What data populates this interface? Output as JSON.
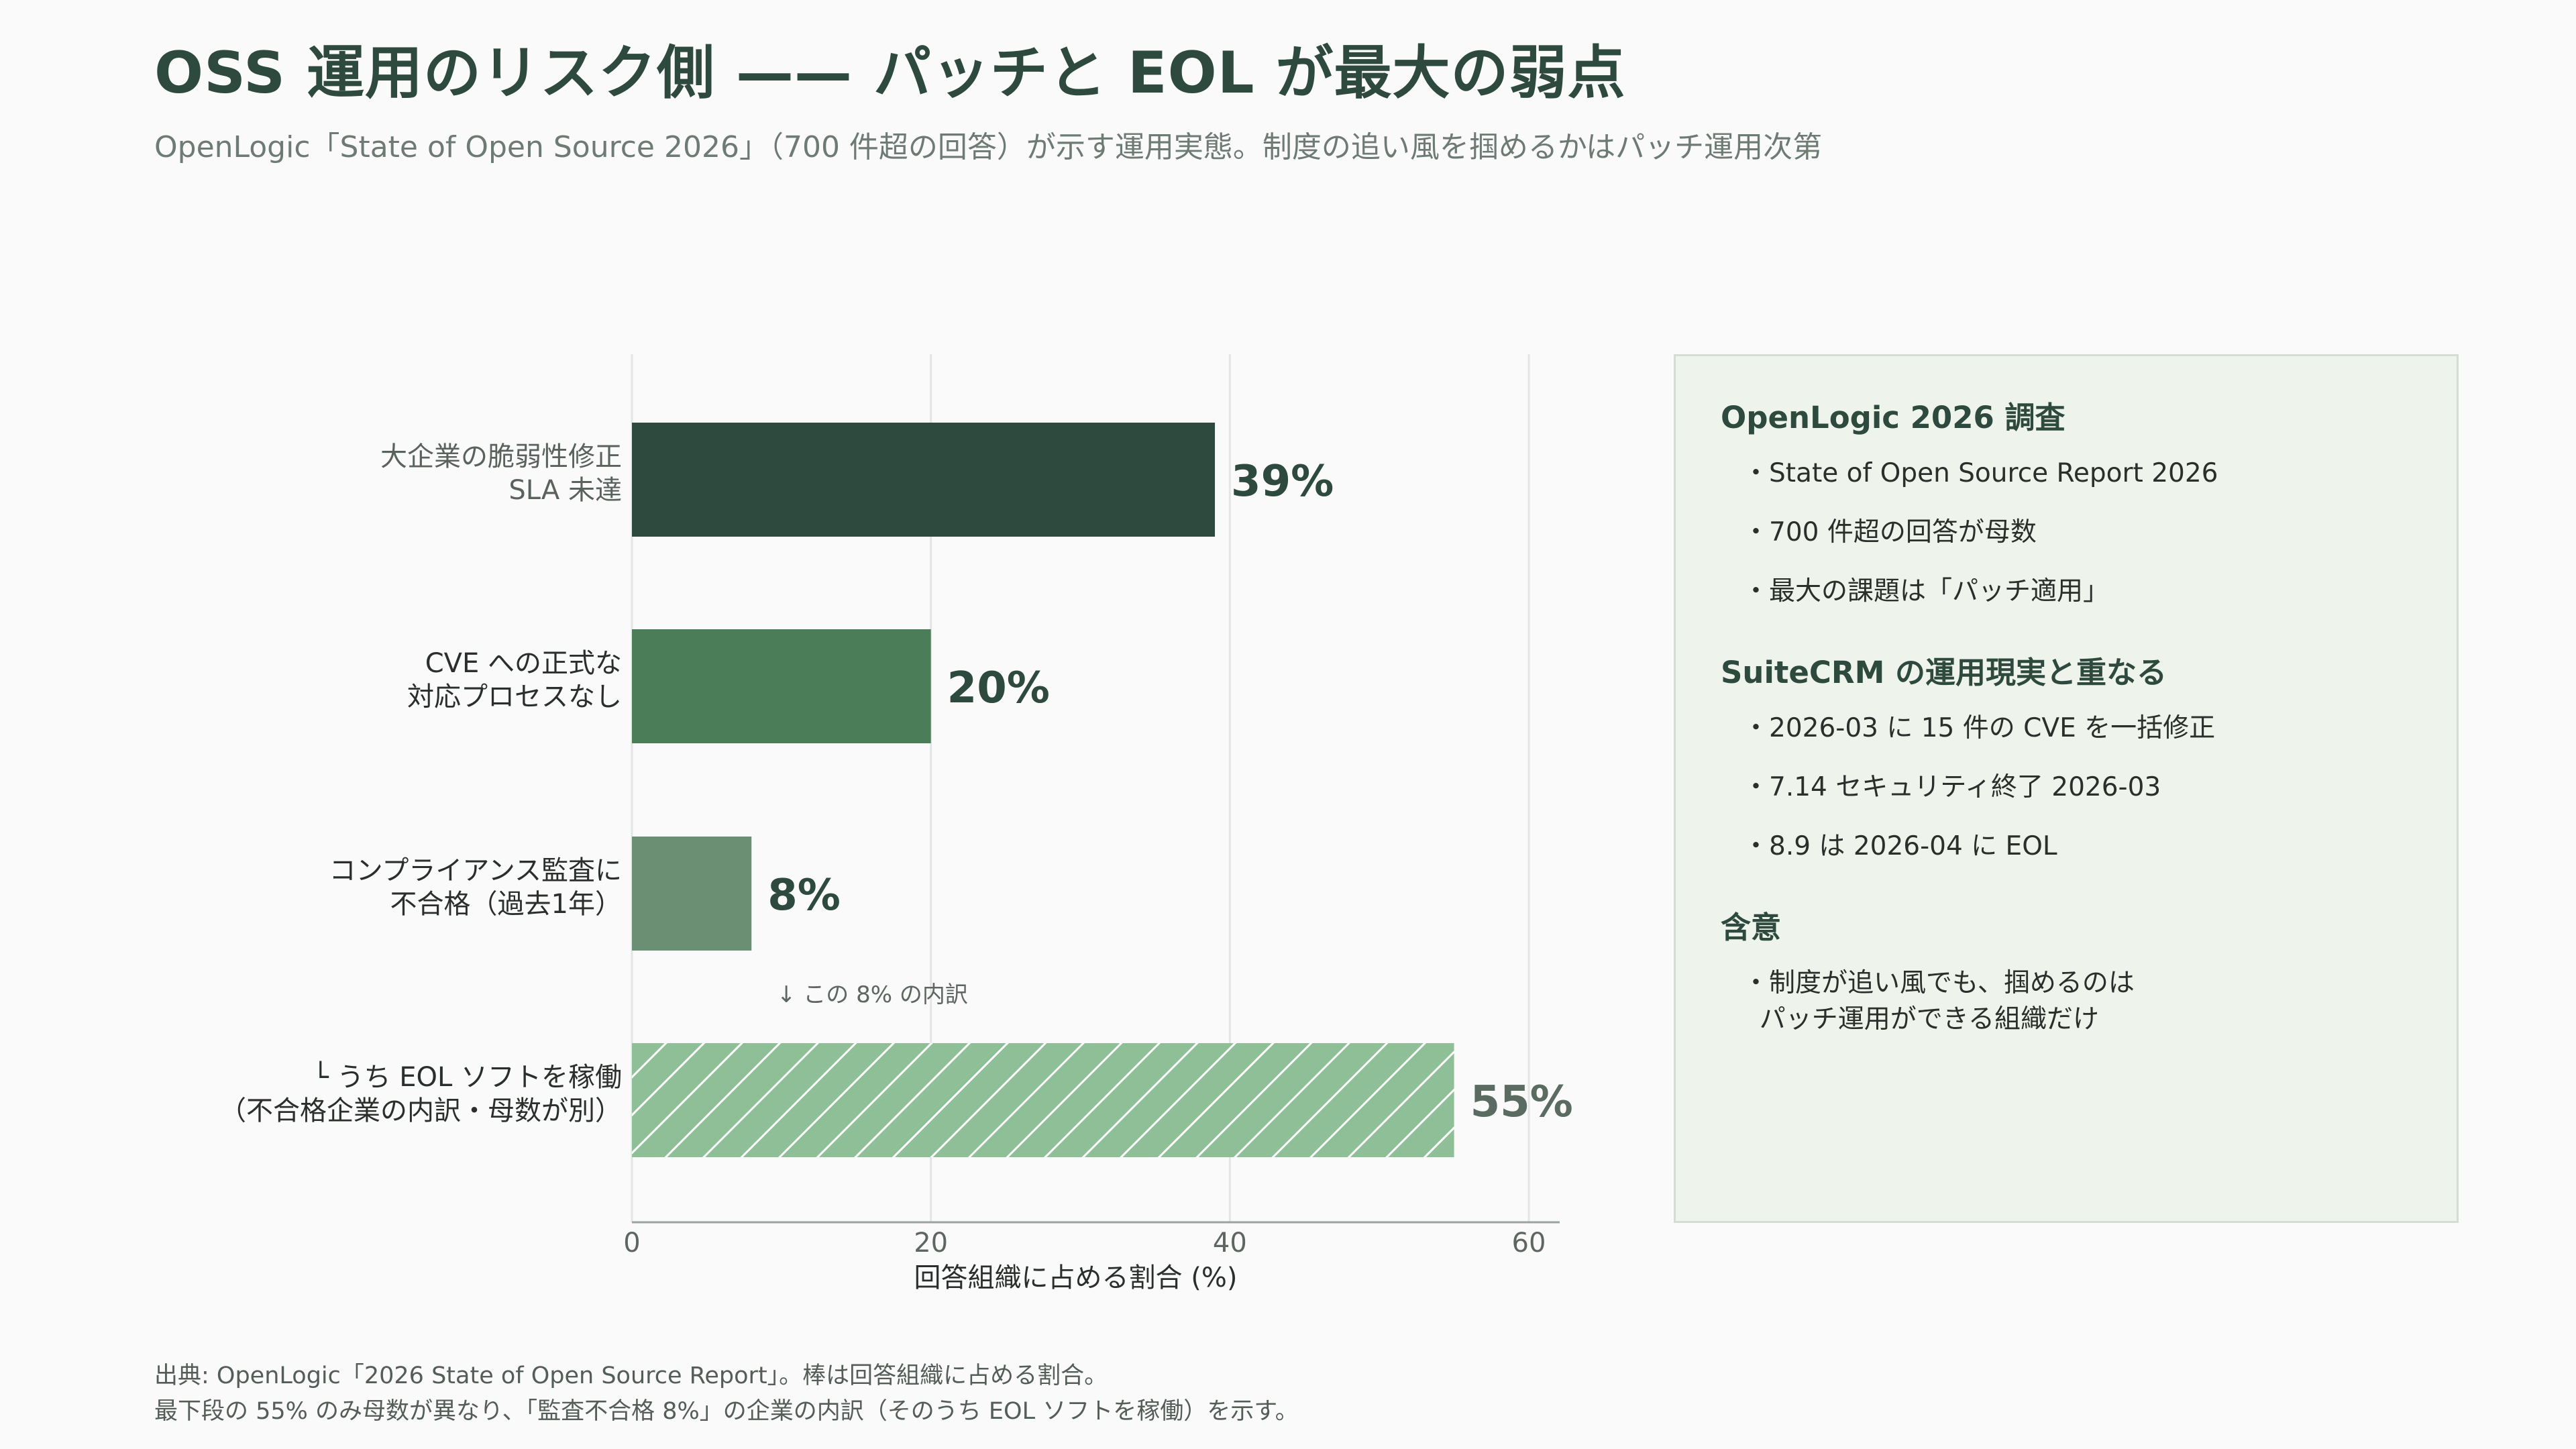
{
  "title": "OSS 運用のリスク側 —— パッチと EOL が最大の弱点",
  "subtitle": "OpenLogic「State of Open Source 2026」（700 件超の回答）が示す運用実態。制度の追い風を掴めるかはパッチ運用次第",
  "chart_data": {
    "type": "bar",
    "orientation": "horizontal",
    "categories": [
      [
        "大企業の脆弱性修正",
        "SLA 未達"
      ],
      [
        "CVE への正式な",
        "対応プロセスなし"
      ],
      [
        "コンプライアンス監査に",
        "不合格（過去1年）"
      ],
      [
        "└ うち EOL ソフトを稼働",
        "（不合格企業の内訳・母数が別）"
      ]
    ],
    "values": [
      39,
      20,
      8,
      55
    ],
    "value_labels": [
      "39%",
      "20%",
      "8%",
      "55%"
    ],
    "bar_colors": [
      "#2e4a3f",
      "#4a7d58",
      "#6a8f72",
      "#8fbf96"
    ],
    "hatched": [
      false,
      false,
      false,
      true
    ],
    "xlabel": "回答組織に占める割合 (%)",
    "xlim": [
      0,
      62
    ],
    "xticks": [
      0,
      20,
      40,
      60
    ],
    "grid": "vertical",
    "annotation": "↓ この 8% の内訳"
  },
  "panel": {
    "sections": [
      {
        "heading": "OpenLogic 2026 調査",
        "items": [
          "・State of Open Source Report 2026",
          "・700 件超の回答が母数",
          "・最大の課題は「パッチ適用」"
        ]
      },
      {
        "heading": "SuiteCRM の運用現実と重なる",
        "items": [
          "・2026-03 に 15 件の CVE を一括修正",
          "・7.14 セキュリティ終了 2026-03",
          "・8.9 は 2026-04 に EOL"
        ]
      },
      {
        "heading": "含意",
        "items": [
          "・制度が追い風でも、掴めるのは\n  パッチ運用ができる組織だけ"
        ]
      }
    ]
  },
  "footer": {
    "line1": "出典: OpenLogic「2026 State of Open Source Report」。棒は回答組織に占める割合。",
    "line2": "最下段の 55% のみ母数が異なり、「監査不合格 8%」の企業の内訳（そのうち EOL ソフトを稼働）を示す。"
  }
}
